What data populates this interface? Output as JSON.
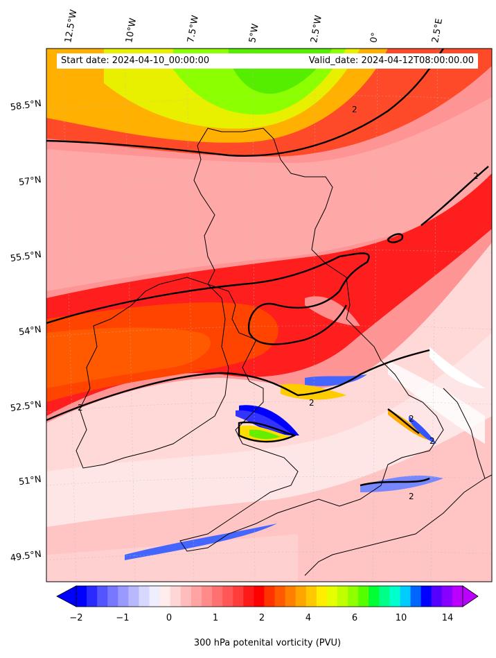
{
  "map": {
    "start_date_text": "Start date: 2024-04-10_00:00:00",
    "valid_date_text": "Valid_date: 2024-04-12T08:00:00.00",
    "lon_labels": [
      "12.5°W",
      "10°W",
      "7.5°W",
      "5°W",
      "2.5°W",
      "0°",
      "2.5°E"
    ],
    "lat_labels": [
      "58.5°N",
      "57°N",
      "55.5°N",
      "54°N",
      "52.5°N",
      "51°N",
      "49.5°N"
    ],
    "contour_labels": [
      "2",
      "2",
      "2",
      "2",
      "2",
      "2",
      "2"
    ]
  },
  "colorbar": {
    "label": "300 hPa potenital vorticity (PVU)",
    "ticks": [
      "−2",
      "−1",
      "0",
      "1",
      "2",
      "4",
      "6",
      "10",
      "14"
    ],
    "colors": [
      "#0000ff",
      "#2a2aff",
      "#5555ff",
      "#7777ff",
      "#9999ff",
      "#b8b8ff",
      "#d8d8ff",
      "#eeeeff",
      "#ffecec",
      "#ffd6d6",
      "#ffbcbc",
      "#ffa3a3",
      "#ff8a8a",
      "#ff7070",
      "#ff5656",
      "#ff3c3c",
      "#ff1a1a",
      "#ff0000",
      "#ff3300",
      "#ff5a00",
      "#ff8000",
      "#ffa500",
      "#ffc800",
      "#ffee00",
      "#e6ff00",
      "#c0ff00",
      "#90ff00",
      "#55ff00",
      "#00ff33",
      "#00ff88",
      "#00ffcc",
      "#00ccff",
      "#0066ff",
      "#0000ff",
      "#5500ff",
      "#8800ff",
      "#bb00ff"
    ]
  }
}
